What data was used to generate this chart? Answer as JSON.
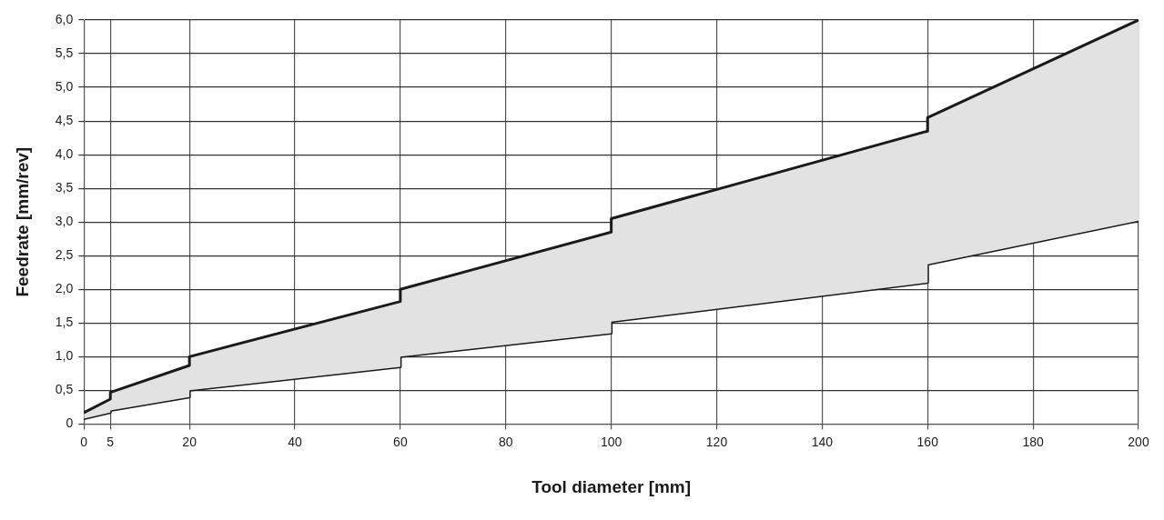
{
  "chart_data": {
    "type": "line",
    "xlabel": "Tool diameter [mm]",
    "ylabel": "Feedrate [mm/rev]",
    "x": [
      0,
      5,
      5,
      20,
      20,
      60,
      60,
      100,
      100,
      160,
      160,
      200
    ],
    "series": [
      {
        "type": "area",
        "color": "#1a1a1a",
        "values": [
          0.17,
          0.37,
          0.47,
          0.87,
          1.0,
          1.82,
          2.0,
          2.85,
          3.05,
          4.35,
          4.55,
          6.0
        ]
      },
      {
        "type": "line",
        "color": "#1a1a1a",
        "values": [
          0.08,
          0.17,
          0.2,
          0.4,
          0.5,
          0.85,
          1.0,
          1.35,
          1.52,
          2.1,
          2.37,
          3.02
        ]
      }
    ],
    "xlim": [
      0,
      200
    ],
    "xticks": [
      0,
      5,
      20,
      40,
      60,
      80,
      100,
      120,
      140,
      160,
      180,
      200
    ],
    "ylim": [
      0,
      6
    ],
    "yticks": [
      0,
      {
        "value": 0.5,
        "label": "0,5"
      },
      {
        "value": 1,
        "label": "1,0"
      },
      {
        "value": 1.5,
        "label": "1,5"
      },
      {
        "value": 2,
        "label": "2,0"
      },
      {
        "value": 2.5,
        "label": "2,5"
      },
      {
        "value": 3,
        "label": "3,0"
      },
      {
        "value": 3.5,
        "label": "3,5"
      },
      {
        "value": 4,
        "label": "4,0"
      },
      {
        "value": 4.5,
        "label": "4,5"
      },
      {
        "value": 5,
        "label": "5,0"
      },
      {
        "value": 5.5,
        "label": "5,5"
      },
      {
        "value": 6,
        "label": "6,0"
      }
    ],
    "grid": true,
    "legend": false,
    "marker": "none",
    "line_style": "solid"
  }
}
